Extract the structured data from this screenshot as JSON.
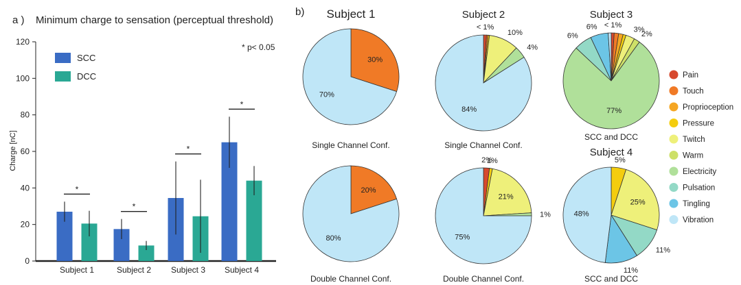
{
  "colors": {
    "scc": "#3a6cc4",
    "dcc": "#2aa894",
    "Pain": "#d7492e",
    "Touch": "#f07a26",
    "Proprioception": "#f5a623",
    "Pressure": "#f4cd0e",
    "Twitch": "#eef07a",
    "Warm": "#cde068",
    "Electricity": "#b0e09a",
    "Pulsation": "#93d9c6",
    "Tingling": "#6cc5e6",
    "Vibration": "#bfe6f7"
  },
  "chart_data": [
    {
      "type": "bar",
      "panel": "a )",
      "title": "Minimum charge to sensation (perceptual threshold)",
      "ylabel": "Charge [nC]",
      "xlabel": "",
      "ylim": [
        0,
        120
      ],
      "yticks": [
        "0",
        "20",
        "40",
        "60",
        "80",
        "100",
        "120"
      ],
      "categories": [
        "Subject 1",
        "Subject 2",
        "Subject 3",
        "Subject 4"
      ],
      "series": [
        {
          "name": "SCC",
          "values": [
            27,
            17.5,
            34.5,
            65
          ],
          "error": [
            5.5,
            5.5,
            20,
            14
          ]
        },
        {
          "name": "DCC",
          "values": [
            20.5,
            8.5,
            24.5,
            44
          ],
          "error": [
            7,
            2.5,
            20,
            8
          ]
        }
      ],
      "significance": [
        "*",
        "*",
        "*",
        "*"
      ],
      "annotation": "* p< 0.05",
      "legend_position": "top-left"
    },
    {
      "type": "pie",
      "panel": "b)",
      "legend": [
        "Pain",
        "Touch",
        "Proprioception",
        "Pressure",
        "Twitch",
        "Warm",
        "Electricity",
        "Pulsation",
        "Tingling",
        "Vibration"
      ],
      "legend_position": "right",
      "pies": [
        {
          "title": "Subject 1",
          "caption": "Single Channel Conf.",
          "slices": [
            {
              "label": "Touch",
              "value": 30,
              "text": "30%"
            },
            {
              "label": "Vibration",
              "value": 70,
              "text": "70%"
            }
          ]
        },
        {
          "title": "",
          "caption": "Double Channel Conf.",
          "slices": [
            {
              "label": "Touch",
              "value": 20,
              "text": "20%"
            },
            {
              "label": "Vibration",
              "value": 80,
              "text": "80%"
            }
          ]
        },
        {
          "title": "Subject 2",
          "caption": "Single Channel Conf.",
          "slices": [
            {
              "label": "Pain",
              "value": 1,
              "text": "< 1%"
            },
            {
              "label": "Touch",
              "value": 0.5,
              "text": ""
            },
            {
              "label": "Pressure",
              "value": 0.5,
              "text": ""
            },
            {
              "label": "Twitch",
              "value": 10,
              "text": "10%"
            },
            {
              "label": "Electricity",
              "value": 4,
              "text": "4%"
            },
            {
              "label": "Vibration",
              "value": 84,
              "text": "84%"
            }
          ]
        },
        {
          "title": "",
          "caption": "Double Channel Conf.",
          "slices": [
            {
              "label": "Pain",
              "value": 2,
              "text": "2%"
            },
            {
              "label": "Pressure",
              "value": 1,
              "text": "1%"
            },
            {
              "label": "Twitch",
              "value": 21,
              "text": "21%"
            },
            {
              "label": "Electricity",
              "value": 1,
              "text": "1%"
            },
            {
              "label": "Vibration",
              "value": 75,
              "text": "75%"
            }
          ]
        },
        {
          "title": "Subject 3",
          "caption": "SCC and DCC",
          "slices": [
            {
              "label": "Pain",
              "value": 1,
              "text": "< 1%"
            },
            {
              "label": "Touch",
              "value": 1.5,
              "text": ""
            },
            {
              "label": "Proprioception",
              "value": 1.5,
              "text": ""
            },
            {
              "label": "Pressure",
              "value": 1,
              "text": ""
            },
            {
              "label": "Twitch",
              "value": 3,
              "text": "3%"
            },
            {
              "label": "Warm",
              "value": 2,
              "text": "2%"
            },
            {
              "label": "Electricity",
              "value": 77,
              "text": "77%"
            },
            {
              "label": "Pulsation",
              "value": 6,
              "text": "6%"
            },
            {
              "label": "Tingling",
              "value": 6,
              "text": "6%"
            },
            {
              "label": "Vibration",
              "value": 1,
              "text": ""
            }
          ]
        },
        {
          "title": "Subject 4",
          "caption": "SCC and DCC",
          "slices": [
            {
              "label": "Pressure",
              "value": 5,
              "text": "5%"
            },
            {
              "label": "Twitch",
              "value": 25,
              "text": "25%"
            },
            {
              "label": "Pulsation",
              "value": 11,
              "text": "11%"
            },
            {
              "label": "Tingling",
              "value": 11,
              "text": "11%"
            },
            {
              "label": "Vibration",
              "value": 48,
              "text": "48%"
            }
          ]
        }
      ]
    }
  ]
}
